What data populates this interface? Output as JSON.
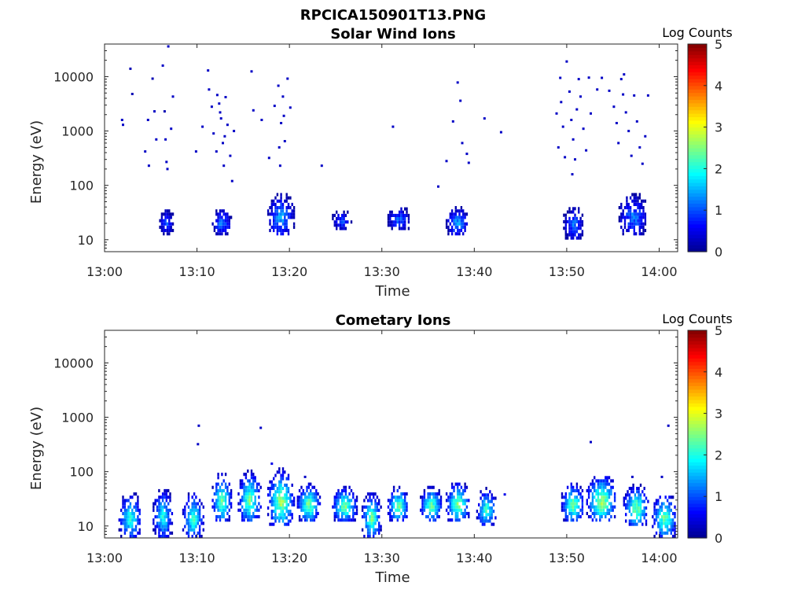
{
  "figure": {
    "title": "RPCICA150901T13.PNG"
  },
  "colormap": [
    "#00008f",
    "#0000ff",
    "#0080ff",
    "#00ffff",
    "#80ff80",
    "#ffff00",
    "#ff8000",
    "#ff0000",
    "#800000"
  ],
  "chart_data": [
    {
      "type": "heatmap",
      "title": "Solar Wind Ions",
      "xlabel": "Time",
      "ylabel": "Energy (eV)",
      "x_ticks": [
        "13:00",
        "13:10",
        "13:20",
        "13:30",
        "13:40",
        "13:50",
        "14:00"
      ],
      "y_ticks": [
        "10",
        "100",
        "1000",
        "10000"
      ],
      "xlim_minutes": [
        0,
        62
      ],
      "ylim_log10": [
        0.78,
        4.6
      ],
      "colorbar": {
        "label": "Log Counts",
        "ticks": [
          "0",
          "1",
          "2",
          "3",
          "4",
          "5"
        ],
        "range": [
          0,
          5
        ]
      },
      "blobs": [
        {
          "t_start": 5.9,
          "t_end": 7.4,
          "e_min": 12,
          "e_max": 38,
          "peak": 1.0
        },
        {
          "t_start": 11.6,
          "t_end": 13.6,
          "e_min": 12,
          "e_max": 38,
          "peak": 1.3
        },
        {
          "t_start": 17.6,
          "t_end": 20.4,
          "e_min": 12,
          "e_max": 75,
          "peak": 1.5
        },
        {
          "t_start": 24.6,
          "t_end": 26.6,
          "e_min": 15,
          "e_max": 35,
          "peak": 1.0
        },
        {
          "t_start": 30.6,
          "t_end": 33.0,
          "e_min": 15,
          "e_max": 40,
          "peak": 1.2
        },
        {
          "t_start": 36.9,
          "t_end": 39.3,
          "e_min": 12,
          "e_max": 40,
          "peak": 1.5
        },
        {
          "t_start": 49.6,
          "t_end": 51.7,
          "e_min": 10,
          "e_max": 45,
          "peak": 1.2
        },
        {
          "t_start": 55.6,
          "t_end": 58.6,
          "e_min": 12,
          "e_max": 75,
          "peak": 1.3
        }
      ],
      "scatter": [
        {
          "t": 1.9,
          "e": 1600,
          "v": 0.3
        },
        {
          "t": 2.0,
          "e": 1300,
          "v": 0.3
        },
        {
          "t": 2.8,
          "e": 14000,
          "v": 0.2
        },
        {
          "t": 3.0,
          "e": 4800,
          "v": 0.2
        },
        {
          "t": 4.4,
          "e": 420,
          "v": 0.3
        },
        {
          "t": 4.7,
          "e": 1600,
          "v": 0.3
        },
        {
          "t": 4.8,
          "e": 230,
          "v": 0.3
        },
        {
          "t": 5.2,
          "e": 9200,
          "v": 0.2
        },
        {
          "t": 5.4,
          "e": 2300,
          "v": 0.3
        },
        {
          "t": 5.6,
          "e": 700,
          "v": 0.3
        },
        {
          "t": 6.3,
          "e": 16000,
          "v": 0.3
        },
        {
          "t": 6.5,
          "e": 2300,
          "v": 0.2
        },
        {
          "t": 6.7,
          "e": 270,
          "v": 0.3
        },
        {
          "t": 6.9,
          "e": 36000,
          "v": 0.3
        },
        {
          "t": 7.2,
          "e": 1100,
          "v": 0.3
        },
        {
          "t": 7.4,
          "e": 4300,
          "v": 0.3
        },
        {
          "t": 6.6,
          "e": 700,
          "v": 0.3
        },
        {
          "t": 6.8,
          "e": 200,
          "v": 0.3
        },
        {
          "t": 9.9,
          "e": 420,
          "v": 0.3
        },
        {
          "t": 10.6,
          "e": 1200,
          "v": 0.3
        },
        {
          "t": 11.2,
          "e": 13000,
          "v": 0.3
        },
        {
          "t": 11.3,
          "e": 5800,
          "v": 0.3
        },
        {
          "t": 11.6,
          "e": 2800,
          "v": 0.3
        },
        {
          "t": 11.8,
          "e": 900,
          "v": 0.3
        },
        {
          "t": 12.1,
          "e": 420,
          "v": 0.3
        },
        {
          "t": 12.4,
          "e": 3200,
          "v": 0.3
        },
        {
          "t": 12.6,
          "e": 1700,
          "v": 0.3
        },
        {
          "t": 12.8,
          "e": 600,
          "v": 0.3
        },
        {
          "t": 12.9,
          "e": 230,
          "v": 0.3
        },
        {
          "t": 13.1,
          "e": 4200,
          "v": 0.3
        },
        {
          "t": 13.3,
          "e": 1300,
          "v": 0.3
        },
        {
          "t": 13.6,
          "e": 350,
          "v": 0.3
        },
        {
          "t": 13.8,
          "e": 120,
          "v": 0.3
        },
        {
          "t": 14.0,
          "e": 1000,
          "v": 0.3
        },
        {
          "t": 12.2,
          "e": 4600,
          "v": 0.3
        },
        {
          "t": 12.5,
          "e": 2200,
          "v": 0.3
        },
        {
          "t": 13.0,
          "e": 800,
          "v": 0.3
        },
        {
          "t": 15.9,
          "e": 12500,
          "v": 0.3
        },
        {
          "t": 16.1,
          "e": 2400,
          "v": 0.3
        },
        {
          "t": 17.0,
          "e": 1600,
          "v": 0.3
        },
        {
          "t": 17.8,
          "e": 320,
          "v": 0.3
        },
        {
          "t": 18.4,
          "e": 2900,
          "v": 0.3
        },
        {
          "t": 18.8,
          "e": 6800,
          "v": 0.3
        },
        {
          "t": 19.1,
          "e": 1400,
          "v": 0.3
        },
        {
          "t": 19.3,
          "e": 4300,
          "v": 0.3
        },
        {
          "t": 19.5,
          "e": 650,
          "v": 0.3
        },
        {
          "t": 19.8,
          "e": 9200,
          "v": 0.3
        },
        {
          "t": 20.1,
          "e": 2700,
          "v": 0.3
        },
        {
          "t": 18.9,
          "e": 500,
          "v": 0.3
        },
        {
          "t": 19.4,
          "e": 1900,
          "v": 0.3
        },
        {
          "t": 19.0,
          "e": 230,
          "v": 0.3
        },
        {
          "t": 23.5,
          "e": 230,
          "v": 0.3
        },
        {
          "t": 31.2,
          "e": 1200,
          "v": 0.3
        },
        {
          "t": 36.1,
          "e": 95,
          "v": 0.3
        },
        {
          "t": 37.0,
          "e": 280,
          "v": 0.3
        },
        {
          "t": 37.7,
          "e": 1500,
          "v": 0.3
        },
        {
          "t": 38.2,
          "e": 7800,
          "v": 0.3
        },
        {
          "t": 38.5,
          "e": 3600,
          "v": 0.3
        },
        {
          "t": 38.7,
          "e": 600,
          "v": 0.3
        },
        {
          "t": 39.2,
          "e": 380,
          "v": 0.3
        },
        {
          "t": 39.4,
          "e": 260,
          "v": 0.3
        },
        {
          "t": 41.1,
          "e": 1700,
          "v": 0.3
        },
        {
          "t": 42.9,
          "e": 950,
          "v": 0.3
        },
        {
          "t": 48.9,
          "e": 2100,
          "v": 0.3
        },
        {
          "t": 49.1,
          "e": 500,
          "v": 0.3
        },
        {
          "t": 49.3,
          "e": 9500,
          "v": 0.3
        },
        {
          "t": 49.4,
          "e": 3400,
          "v": 0.3
        },
        {
          "t": 49.6,
          "e": 1200,
          "v": 0.3
        },
        {
          "t": 49.8,
          "e": 330,
          "v": 0.3
        },
        {
          "t": 50.0,
          "e": 19000,
          "v": 0.3
        },
        {
          "t": 50.3,
          "e": 5300,
          "v": 0.3
        },
        {
          "t": 50.5,
          "e": 1600,
          "v": 0.3
        },
        {
          "t": 50.7,
          "e": 700,
          "v": 0.3
        },
        {
          "t": 50.9,
          "e": 300,
          "v": 0.3
        },
        {
          "t": 51.1,
          "e": 2500,
          "v": 0.3
        },
        {
          "t": 51.3,
          "e": 9000,
          "v": 0.3
        },
        {
          "t": 51.5,
          "e": 4300,
          "v": 0.3
        },
        {
          "t": 51.8,
          "e": 1100,
          "v": 0.3
        },
        {
          "t": 52.1,
          "e": 440,
          "v": 0.3
        },
        {
          "t": 52.4,
          "e": 9600,
          "v": 0.3
        },
        {
          "t": 52.6,
          "e": 2100,
          "v": 0.3
        },
        {
          "t": 53.3,
          "e": 5800,
          "v": 0.3
        },
        {
          "t": 53.8,
          "e": 9500,
          "v": 0.3
        },
        {
          "t": 54.6,
          "e": 5500,
          "v": 0.3
        },
        {
          "t": 55.1,
          "e": 2800,
          "v": 0.3
        },
        {
          "t": 55.4,
          "e": 1400,
          "v": 0.3
        },
        {
          "t": 55.6,
          "e": 600,
          "v": 0.3
        },
        {
          "t": 55.9,
          "e": 9000,
          "v": 0.3
        },
        {
          "t": 56.1,
          "e": 4700,
          "v": 0.3
        },
        {
          "t": 56.4,
          "e": 2200,
          "v": 0.3
        },
        {
          "t": 56.7,
          "e": 1000,
          "v": 0.3
        },
        {
          "t": 57.0,
          "e": 350,
          "v": 0.3
        },
        {
          "t": 57.3,
          "e": 4500,
          "v": 0.3
        },
        {
          "t": 57.6,
          "e": 1500,
          "v": 0.3
        },
        {
          "t": 57.9,
          "e": 500,
          "v": 0.3
        },
        {
          "t": 58.2,
          "e": 250,
          "v": 0.3
        },
        {
          "t": 58.5,
          "e": 800,
          "v": 0.3
        },
        {
          "t": 58.8,
          "e": 4500,
          "v": 0.3
        },
        {
          "t": 50.6,
          "e": 160,
          "v": 0.3
        },
        {
          "t": 56.2,
          "e": 11000,
          "v": 0.3
        }
      ]
    },
    {
      "type": "heatmap",
      "title": "Cometary Ions",
      "xlabel": "Time",
      "ylabel": "Energy (eV)",
      "x_ticks": [
        "13:00",
        "13:10",
        "13:20",
        "13:30",
        "13:40",
        "13:50",
        "14:00"
      ],
      "y_ticks": [
        "10",
        "100",
        "1000",
        "10000"
      ],
      "xlim_minutes": [
        0,
        62
      ],
      "ylim_log10": [
        0.78,
        4.6
      ],
      "colorbar": {
        "label": "Log Counts",
        "ticks": [
          "0",
          "1",
          "2",
          "3",
          "4",
          "5"
        ],
        "range": [
          0,
          5
        ]
      },
      "blobs": [
        {
          "t_start": 1.5,
          "t_end": 3.9,
          "e_min": 6,
          "e_max": 45,
          "peak": 2.2
        },
        {
          "t_start": 5.2,
          "t_end": 7.3,
          "e_min": 6,
          "e_max": 55,
          "peak": 2.0
        },
        {
          "t_start": 8.4,
          "t_end": 10.6,
          "e_min": 6,
          "e_max": 45,
          "peak": 2.3
        },
        {
          "t_start": 11.6,
          "t_end": 13.6,
          "e_min": 12,
          "e_max": 100,
          "peak": 2.6
        },
        {
          "t_start": 14.4,
          "t_end": 16.8,
          "e_min": 12,
          "e_max": 110,
          "peak": 2.6
        },
        {
          "t_start": 17.6,
          "t_end": 20.4,
          "e_min": 10,
          "e_max": 120,
          "peak": 2.8
        },
        {
          "t_start": 20.8,
          "t_end": 23.2,
          "e_min": 12,
          "e_max": 65,
          "peak": 2.6
        },
        {
          "t_start": 24.6,
          "t_end": 27.2,
          "e_min": 12,
          "e_max": 55,
          "peak": 2.6
        },
        {
          "t_start": 27.8,
          "t_end": 29.8,
          "e_min": 6,
          "e_max": 45,
          "peak": 2.5
        },
        {
          "t_start": 30.6,
          "t_end": 32.8,
          "e_min": 12,
          "e_max": 55,
          "peak": 2.6
        },
        {
          "t_start": 34.1,
          "t_end": 36.4,
          "e_min": 12,
          "e_max": 55,
          "peak": 2.6
        },
        {
          "t_start": 36.9,
          "t_end": 39.4,
          "e_min": 12,
          "e_max": 70,
          "peak": 2.7
        },
        {
          "t_start": 40.2,
          "t_end": 42.3,
          "e_min": 10,
          "e_max": 50,
          "peak": 2.3
        },
        {
          "t_start": 49.4,
          "t_end": 51.8,
          "e_min": 12,
          "e_max": 65,
          "peak": 2.6
        },
        {
          "t_start": 52.1,
          "t_end": 55.3,
          "e_min": 12,
          "e_max": 95,
          "peak": 2.8
        },
        {
          "t_start": 56.1,
          "t_end": 58.8,
          "e_min": 10,
          "e_max": 60,
          "peak": 2.6
        },
        {
          "t_start": 59.2,
          "t_end": 61.8,
          "e_min": 6,
          "e_max": 45,
          "peak": 2.5
        }
      ],
      "scatter": [
        {
          "t": 10.2,
          "e": 700,
          "v": 0.3
        },
        {
          "t": 10.1,
          "e": 320,
          "v": 0.3
        },
        {
          "t": 16.9,
          "e": 640,
          "v": 0.3
        },
        {
          "t": 18.1,
          "e": 140,
          "v": 0.5
        },
        {
          "t": 21.7,
          "e": 80,
          "v": 0.3
        },
        {
          "t": 43.3,
          "e": 38,
          "v": 0.5
        },
        {
          "t": 52.6,
          "e": 350,
          "v": 0.3
        },
        {
          "t": 61.0,
          "e": 700,
          "v": 0.3
        },
        {
          "t": 60.3,
          "e": 80,
          "v": 0.3
        },
        {
          "t": 57.1,
          "e": 80,
          "v": 0.3
        }
      ]
    }
  ]
}
